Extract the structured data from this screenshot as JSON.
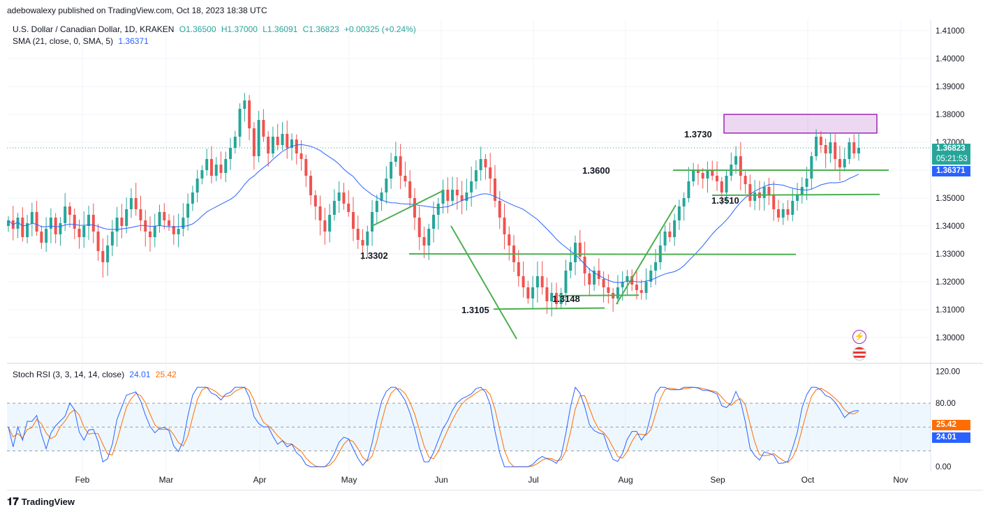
{
  "publisher": "adebowalexy published on TradingView.com, Oct 18, 2023 18:38 UTC",
  "legend": {
    "symbol": "U.S. Dollar / Canadian Dollar, 1D, KRAKEN",
    "open": "O1.36500",
    "high": "H1.37000",
    "low": "L1.36091",
    "close": "C1.36823",
    "change": "+0.00325 (+0.24%)",
    "sma_label": "SMA (21, close, 0, SMA, 5)",
    "sma_value": "1.36371",
    "stoch_label": "Stoch RSI (3, 3, 14, 14, close)",
    "stoch_k": "24.01",
    "stoch_d": "25.42"
  },
  "badges": {
    "price": "1.36823",
    "countdown": "05:21:53",
    "sma": "1.36371",
    "stoch_d": "25.42",
    "stoch_k": "24.01"
  },
  "brand": "TradingView",
  "colors": {
    "up": "#26a69a",
    "down": "#ef5350",
    "sma": "#2962ff",
    "stoch_k": "#2962ff",
    "stoch_d": "#ff6d00",
    "trendline": "#4caf50",
    "zone": "#9c27b0"
  },
  "chart_data": {
    "type": "candlestick",
    "price_axis": {
      "ticks": [
        "1.41000",
        "1.40000",
        "1.39000",
        "1.38000",
        "1.37000",
        "1.36000",
        "1.35000",
        "1.34000",
        "1.33000",
        "1.32000",
        "1.31000",
        "1.30000"
      ],
      "range": [
        1.291,
        1.414
      ]
    },
    "time_axis": [
      "Feb",
      "Mar",
      "Apr",
      "May",
      "Jun",
      "Jul",
      "Aug",
      "Sep",
      "Oct",
      "Nov"
    ],
    "annotations": [
      "1.3730",
      "1.3600",
      "1.3510",
      "1.3302",
      "1.3148",
      "1.3105"
    ],
    "stoch_axis": {
      "ticks": [
        "120.00",
        "80.00",
        "0.00"
      ],
      "range": [
        -6,
        124
      ],
      "band": [
        20,
        80
      ]
    },
    "ohlc_path_closes": [
      1.342,
      1.339,
      1.343,
      1.336,
      1.341,
      1.345,
      1.338,
      1.334,
      1.339,
      1.343,
      1.337,
      1.341,
      1.347,
      1.344,
      1.339,
      1.336,
      1.34,
      1.344,
      1.338,
      1.331,
      1.327,
      1.333,
      1.338,
      1.343,
      1.34,
      1.346,
      1.35,
      1.346,
      1.342,
      1.338,
      1.336,
      1.34,
      1.345,
      1.342,
      1.34,
      1.337,
      1.339,
      1.343,
      1.348,
      1.352,
      1.357,
      1.36,
      1.364,
      1.358,
      1.362,
      1.359,
      1.364,
      1.368,
      1.372,
      1.382,
      1.385,
      1.375,
      1.365,
      1.378,
      1.372,
      1.366,
      1.372,
      1.369,
      1.373,
      1.368,
      1.371,
      1.366,
      1.364,
      1.358,
      1.351,
      1.347,
      1.342,
      1.338,
      1.344,
      1.349,
      1.352,
      1.348,
      1.345,
      1.339,
      1.335,
      1.333,
      1.338,
      1.345,
      1.349,
      1.352,
      1.357,
      1.363,
      1.365,
      1.358,
      1.356,
      1.35,
      1.343,
      1.336,
      1.333,
      1.339,
      1.344,
      1.348,
      1.353,
      1.349,
      1.353,
      1.351,
      1.349,
      1.352,
      1.356,
      1.36,
      1.364,
      1.361,
      1.357,
      1.349,
      1.343,
      1.337,
      1.333,
      1.327,
      1.322,
      1.318,
      1.314,
      1.318,
      1.322,
      1.318,
      1.313,
      1.316,
      1.312,
      1.316,
      1.324,
      1.327,
      1.334,
      1.329,
      1.323,
      1.319,
      1.324,
      1.321,
      1.318,
      1.316,
      1.314,
      1.318,
      1.32,
      1.322,
      1.319,
      1.317,
      1.316,
      1.32,
      1.324,
      1.327,
      1.333,
      1.338,
      1.336,
      1.342,
      1.347,
      1.35,
      1.356,
      1.36,
      1.359,
      1.357,
      1.36,
      1.358,
      1.356,
      1.352,
      1.358,
      1.362,
      1.365,
      1.358,
      1.355,
      1.349,
      1.352,
      1.35,
      1.354,
      1.351,
      1.346,
      1.343,
      1.346,
      1.344,
      1.349,
      1.351,
      1.354,
      1.357,
      1.365,
      1.372,
      1.369,
      1.366,
      1.37,
      1.364,
      1.361,
      1.364,
      1.37,
      1.366,
      1.368
    ]
  }
}
